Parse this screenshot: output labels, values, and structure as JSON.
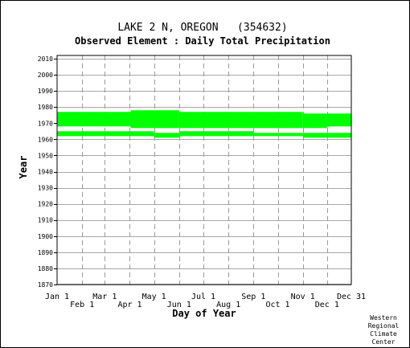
{
  "chart_data": {
    "type": "bar",
    "title": "LAKE 2 N, OREGON   (354632)",
    "subtitle": "Observed Element : Daily Total Precipitation",
    "xlabel": "Day of Year",
    "ylabel": "Year",
    "xlim": [
      1,
      365
    ],
    "ylim": [
      1870,
      2012
    ],
    "x_ticks_upper": [
      {
        "label": "Jan 1",
        "day": 1
      },
      {
        "label": "Mar 1",
        "day": 60
      },
      {
        "label": "May 1",
        "day": 121
      },
      {
        "label": "Jul 1",
        "day": 182
      },
      {
        "label": "Sep 1",
        "day": 244
      },
      {
        "label": "Nov 1",
        "day": 305
      },
      {
        "label": "Dec 31",
        "day": 365
      }
    ],
    "x_ticks_lower": [
      {
        "label": "Feb 1",
        "day": 32
      },
      {
        "label": "Apr 1",
        "day": 91
      },
      {
        "label": "Jun 1",
        "day": 152
      },
      {
        "label": "Aug 1",
        "day": 213
      },
      {
        "label": "Oct 1",
        "day": 274
      },
      {
        "label": "Dec 1",
        "day": 335
      }
    ],
    "y_ticks": [
      1870,
      1880,
      1890,
      1900,
      1910,
      1920,
      1930,
      1940,
      1950,
      1960,
      1970,
      1980,
      1990,
      2000,
      2010
    ],
    "grid": true,
    "series_color": "#00ff00",
    "series": [
      {
        "values": [
          {
            "day_start": 1,
            "day_end": 92,
            "year_start": 1968,
            "year_end": 1977
          },
          {
            "day_start": 92,
            "day_end": 152,
            "year_start": 1967,
            "year_end": 1978
          },
          {
            "day_start": 152,
            "day_end": 305,
            "year_start": 1967,
            "year_end": 1977
          },
          {
            "day_start": 305,
            "day_end": 335,
            "year_start": 1967,
            "year_end": 1976
          },
          {
            "day_start": 335,
            "day_end": 365,
            "year_start": 1968,
            "year_end": 1976
          },
          {
            "day_start": 1,
            "day_end": 121,
            "year_start": 1962,
            "year_end": 1965
          },
          {
            "day_start": 121,
            "day_end": 152,
            "year_start": 1961,
            "year_end": 1964
          },
          {
            "day_start": 152,
            "day_end": 244,
            "year_start": 1962,
            "year_end": 1965
          },
          {
            "day_start": 244,
            "day_end": 305,
            "year_start": 1962,
            "year_end": 1964
          },
          {
            "day_start": 305,
            "day_end": 365,
            "year_start": 1961,
            "year_end": 1964
          }
        ]
      }
    ]
  },
  "credit": [
    "Western",
    "Regional",
    "Climate",
    "Center"
  ]
}
